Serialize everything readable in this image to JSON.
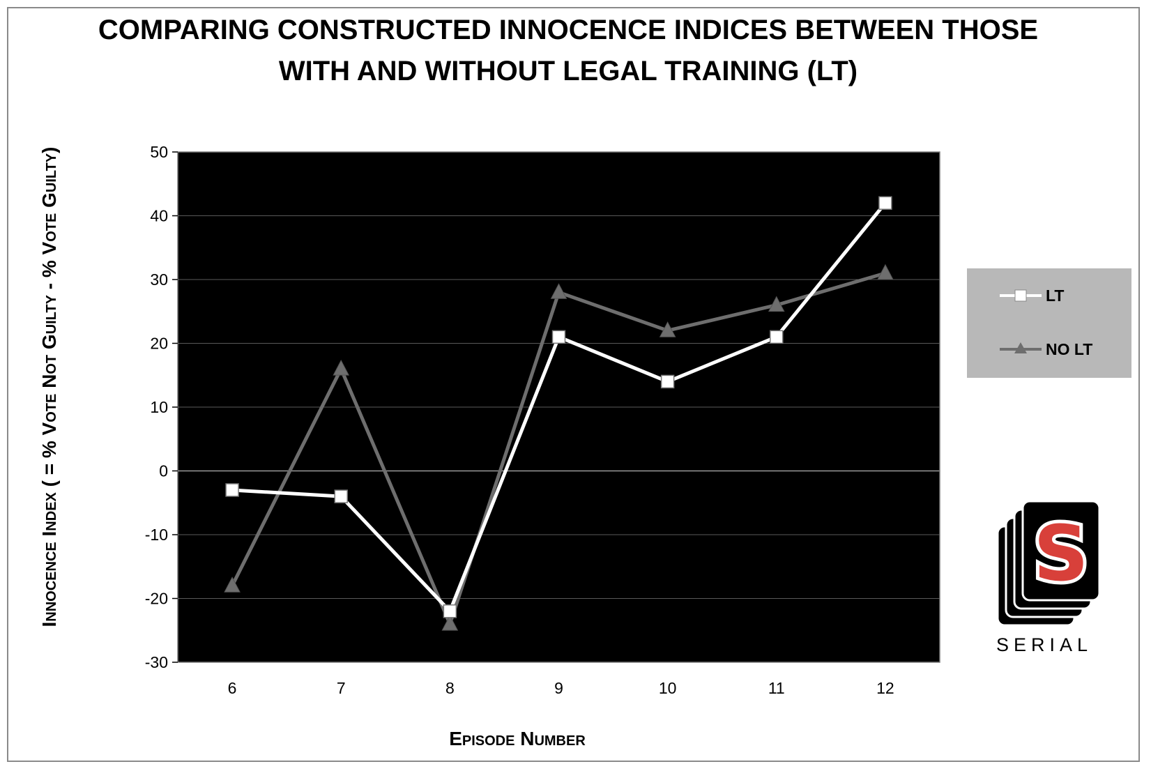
{
  "chart_data": {
    "type": "line",
    "title_lines": [
      "COMPARING CONSTRUCTED INNOCENCE INDICES BETWEEN THOSE",
      "WITH AND WITHOUT LEGAL TRAINING (LT)"
    ],
    "xlabel": "Episode Number",
    "ylabel": "Innocence Index ( = % Vote Not Guilty - % Vote Guilty)",
    "categories": [
      "6",
      "7",
      "8",
      "9",
      "10",
      "11",
      "12"
    ],
    "ylim": [
      -30,
      50
    ],
    "yticks": [
      "50",
      "40",
      "30",
      "20",
      "10",
      "0",
      "-10",
      "-20",
      "-30"
    ],
    "grid": true,
    "plot_background": "#000000",
    "legend_position": "right",
    "series": [
      {
        "name": "LT",
        "marker": "square",
        "color": "#ffffff",
        "values": [
          -3,
          -4,
          -22,
          21,
          14,
          21,
          42
        ]
      },
      {
        "name": "NO LT",
        "marker": "triangle",
        "color": "#6e6e6e",
        "values": [
          -18,
          16,
          -24,
          28,
          22,
          26,
          31
        ]
      }
    ]
  },
  "logo": {
    "letter": "S",
    "text": "SERIAL",
    "accent_color": "#d8403a"
  }
}
